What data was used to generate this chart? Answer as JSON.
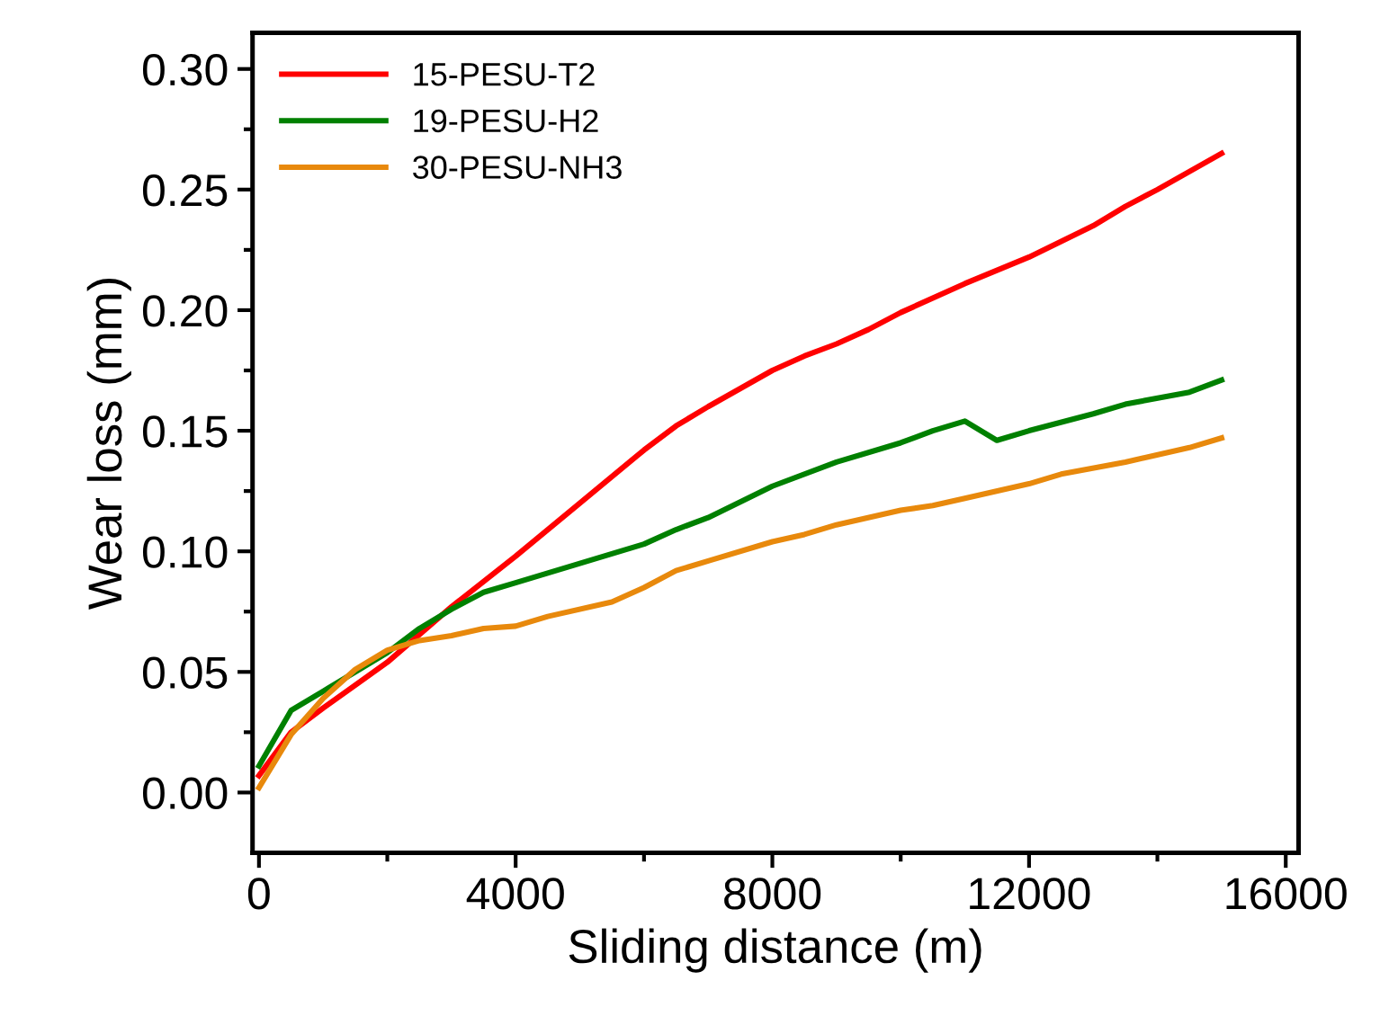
{
  "chart_data": {
    "type": "line",
    "xlabel": "Sliding distance (m)",
    "ylabel": "Wear loss (mm)",
    "xlim": [
      -100,
      16200
    ],
    "xticks": [
      0,
      4000,
      8000,
      12000,
      16000
    ],
    "ylim": [
      -0.025,
      0.315
    ],
    "yticks": [
      {
        "value": 0,
        "label": "0.00"
      },
      {
        "value": 0.05,
        "label": "0.05"
      },
      {
        "value": 0.1,
        "label": "0.10"
      },
      {
        "value": 0.15,
        "label": "0.15"
      },
      {
        "value": 0.2,
        "label": "0.20"
      },
      {
        "value": 0.25,
        "label": "0.25"
      },
      {
        "value": 0.3,
        "label": "0.30"
      }
    ],
    "grid": false,
    "legend": "top left",
    "marker": "none",
    "line_style": "solid",
    "series": [
      {
        "name": "15-PESU-T2",
        "color": "#ff0000",
        "x": [
          0,
          500,
          1000,
          2000,
          3000,
          4000,
          5000,
          6000,
          6500,
          7000,
          8000,
          8500,
          9000,
          9500,
          10000,
          11000,
          12000,
          13000,
          13500,
          14000,
          15000
        ],
        "values": [
          0.007,
          0.025,
          0.035,
          0.054,
          0.077,
          0.098,
          0.12,
          0.142,
          0.152,
          0.16,
          0.175,
          0.181,
          0.186,
          0.192,
          0.199,
          0.211,
          0.222,
          0.235,
          0.243,
          0.25,
          0.265
        ]
      },
      {
        "name": "19-PESU-H2",
        "color": "#008000",
        "x": [
          0,
          500,
          1000,
          1500,
          2000,
          2500,
          3000,
          3500,
          4000,
          5000,
          6000,
          6500,
          7000,
          8000,
          9000,
          10000,
          10500,
          11000,
          11500,
          12000,
          13000,
          13500,
          14500,
          15000
        ],
        "values": [
          0.011,
          0.034,
          0.042,
          0.05,
          0.058,
          0.068,
          0.076,
          0.083,
          0.087,
          0.095,
          0.103,
          0.109,
          0.114,
          0.127,
          0.137,
          0.145,
          0.15,
          0.154,
          0.146,
          0.15,
          0.157,
          0.161,
          0.166,
          0.171
        ]
      },
      {
        "name": "30-PESU-NH3",
        "color": "#e8890c",
        "x": [
          0,
          500,
          1000,
          1500,
          2000,
          2500,
          3000,
          3500,
          4000,
          4500,
          5500,
          6000,
          6500,
          7000,
          8000,
          8500,
          9000,
          10000,
          10500,
          11000,
          12000,
          12500,
          13500,
          14500,
          15000
        ],
        "values": [
          0.002,
          0.024,
          0.039,
          0.051,
          0.059,
          0.063,
          0.065,
          0.068,
          0.069,
          0.073,
          0.079,
          0.085,
          0.092,
          0.096,
          0.104,
          0.107,
          0.111,
          0.117,
          0.119,
          0.122,
          0.128,
          0.132,
          0.137,
          0.143,
          0.147
        ]
      }
    ]
  }
}
